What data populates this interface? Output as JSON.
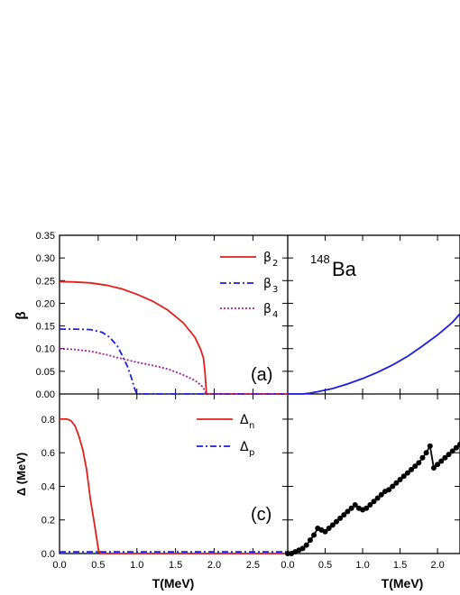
{
  "chart_data": [
    {
      "panel": "(a)",
      "type": "line",
      "xlabel": "",
      "ylabel": "β",
      "xlim": [
        0,
        2.95
      ],
      "ylim": [
        0,
        0.35
      ],
      "yticks": [
        "0.00",
        "0.05",
        "0.10",
        "0.15",
        "0.20",
        "0.25",
        "0.30",
        "0.35"
      ],
      "series": [
        {
          "name": "β",
          "sub": "2",
          "color": "#e0201b",
          "dash": "solid",
          "x": [
            0,
            0.2,
            0.4,
            0.6,
            0.8,
            1.0,
            1.2,
            1.4,
            1.6,
            1.75,
            1.82,
            1.86,
            1.88,
            1.9,
            1.92,
            2.95
          ],
          "y": [
            0.248,
            0.247,
            0.245,
            0.24,
            0.232,
            0.22,
            0.205,
            0.185,
            0.157,
            0.125,
            0.1,
            0.08,
            0.05,
            0.0,
            0.0,
            0.0
          ]
        },
        {
          "name": "β",
          "sub": "3",
          "color": "#1d1de0",
          "dash": "7,3,2,3",
          "x": [
            0,
            0.2,
            0.4,
            0.55,
            0.65,
            0.75,
            0.82,
            0.88,
            0.93,
            0.97,
            1.0,
            2.95
          ],
          "y": [
            0.143,
            0.143,
            0.142,
            0.136,
            0.125,
            0.105,
            0.082,
            0.06,
            0.035,
            0.012,
            0.0,
            0.0
          ]
        },
        {
          "name": "β",
          "sub": "4",
          "color": "#a0209a",
          "dash": "2,2",
          "x": [
            0,
            0.2,
            0.4,
            0.6,
            0.8,
            1.0,
            1.2,
            1.4,
            1.6,
            1.75,
            1.85,
            1.9,
            2.95
          ],
          "y": [
            0.1,
            0.098,
            0.094,
            0.087,
            0.078,
            0.07,
            0.063,
            0.055,
            0.042,
            0.03,
            0.016,
            0.0,
            0.0
          ]
        }
      ]
    },
    {
      "panel": "",
      "type": "line",
      "annotation": {
        "sup": "148",
        "text": "Ba"
      },
      "xlim": [
        0,
        2.3
      ],
      "ylim": [
        0,
        0.35
      ],
      "series": [
        {
          "color": "#1d1de0",
          "dash": "solid",
          "x": [
            0,
            0.2,
            0.3,
            0.4,
            0.6,
            0.8,
            1.0,
            1.2,
            1.4,
            1.6,
            1.8,
            2.0,
            2.2,
            2.3
          ],
          "y": [
            0,
            0.0,
            0.002,
            0.005,
            0.012,
            0.022,
            0.034,
            0.048,
            0.064,
            0.083,
            0.106,
            0.13,
            0.158,
            0.177
          ]
        }
      ]
    },
    {
      "panel": "(c)",
      "type": "line",
      "xlabel": "T(MeV)",
      "ylabel": "Δ (MeV)",
      "xlim": [
        0,
        2.95
      ],
      "ylim": [
        0,
        0.95
      ],
      "xticks": [
        "0.0",
        "0.5",
        "1.0",
        "1.5",
        "2.0",
        "2.5"
      ],
      "yticks": [
        "0.0",
        "0.2",
        "0.4",
        "0.6",
        "0.8"
      ],
      "series": [
        {
          "name": "Δ",
          "sub": "n",
          "color": "#e0201b",
          "dash": "solid",
          "x": [
            0,
            0.1,
            0.15,
            0.2,
            0.25,
            0.3,
            0.35,
            0.4,
            0.45,
            0.48,
            0.5,
            0.52,
            2.95
          ],
          "y": [
            0.8,
            0.8,
            0.79,
            0.76,
            0.7,
            0.62,
            0.5,
            0.32,
            0.18,
            0.09,
            0.03,
            0.0,
            0.0
          ]
        },
        {
          "name": "Δ",
          "sub": "p",
          "color": "#1d1de0",
          "dash": "7,3,2,3",
          "x": [
            0,
            2.95
          ],
          "y": [
            0.01,
            0.01
          ]
        }
      ]
    },
    {
      "panel": "",
      "type": "line",
      "xlabel": "T(MeV)",
      "xlim": [
        0,
        2.3
      ],
      "ylim": [
        0,
        0.95
      ],
      "xticks": [
        "0.0",
        "0.5",
        "1.0",
        "1.5",
        "2.0"
      ],
      "series": [
        {
          "color": "#000000",
          "dash": "solid",
          "markers": true,
          "x": [
            0,
            0.05,
            0.1,
            0.15,
            0.2,
            0.25,
            0.3,
            0.35,
            0.4,
            0.45,
            0.5,
            0.55,
            0.6,
            0.65,
            0.7,
            0.75,
            0.8,
            0.85,
            0.9,
            0.95,
            1.0,
            1.05,
            1.1,
            1.15,
            1.2,
            1.25,
            1.3,
            1.35,
            1.4,
            1.45,
            1.5,
            1.55,
            1.6,
            1.65,
            1.7,
            1.75,
            1.8,
            1.85,
            1.9,
            1.95,
            2.0,
            2.05,
            2.1,
            2.15,
            2.2,
            2.25,
            2.3
          ],
          "y": [
            0.0,
            0.0,
            0.01,
            0.02,
            0.03,
            0.05,
            0.08,
            0.11,
            0.15,
            0.14,
            0.13,
            0.15,
            0.17,
            0.19,
            0.21,
            0.23,
            0.25,
            0.27,
            0.29,
            0.27,
            0.26,
            0.27,
            0.29,
            0.31,
            0.33,
            0.35,
            0.37,
            0.38,
            0.4,
            0.42,
            0.44,
            0.46,
            0.48,
            0.5,
            0.52,
            0.54,
            0.57,
            0.6,
            0.64,
            0.51,
            0.53,
            0.55,
            0.57,
            0.59,
            0.61,
            0.63,
            0.65
          ]
        }
      ]
    }
  ]
}
